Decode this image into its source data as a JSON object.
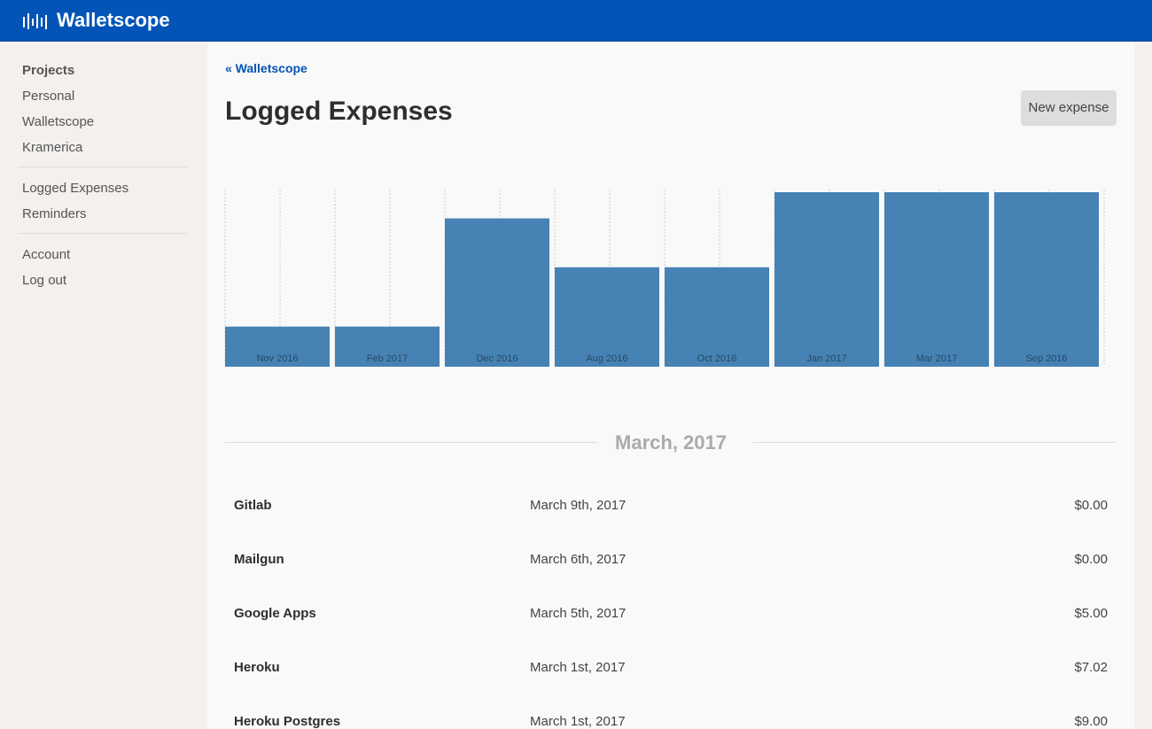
{
  "header": {
    "brand": "Walletscope"
  },
  "sidebar": {
    "heading": "Projects",
    "projects": [
      "Personal",
      "Walletscope",
      "Kramerica"
    ],
    "sections": [
      "Logged Expenses",
      "Reminders"
    ],
    "account": [
      "Account",
      "Log out"
    ]
  },
  "breadcrumb": "« Walletscope",
  "title": "Logged Expenses",
  "button": "New expense",
  "chart_data": {
    "type": "bar",
    "categories": [
      "Nov 2016",
      "Feb 2017",
      "Dec 2016",
      "Aug 2016",
      "Oct 2016",
      "Jan 2017",
      "Mar 2017",
      "Sep 2016"
    ],
    "values": [
      23,
      23,
      85,
      57,
      57,
      100,
      100,
      100
    ],
    "color": "#4682b4"
  },
  "month_heading": "March, 2017",
  "expenses": [
    {
      "name": "Gitlab",
      "date": "March 9th, 2017",
      "amount": "$0.00"
    },
    {
      "name": "Mailgun",
      "date": "March 6th, 2017",
      "amount": "$0.00"
    },
    {
      "name": "Google Apps",
      "date": "March 5th, 2017",
      "amount": "$5.00"
    },
    {
      "name": "Heroku",
      "date": "March 1st, 2017",
      "amount": "$7.02"
    },
    {
      "name": "Heroku Postgres",
      "date": "March 1st, 2017",
      "amount": "$9.00"
    }
  ]
}
